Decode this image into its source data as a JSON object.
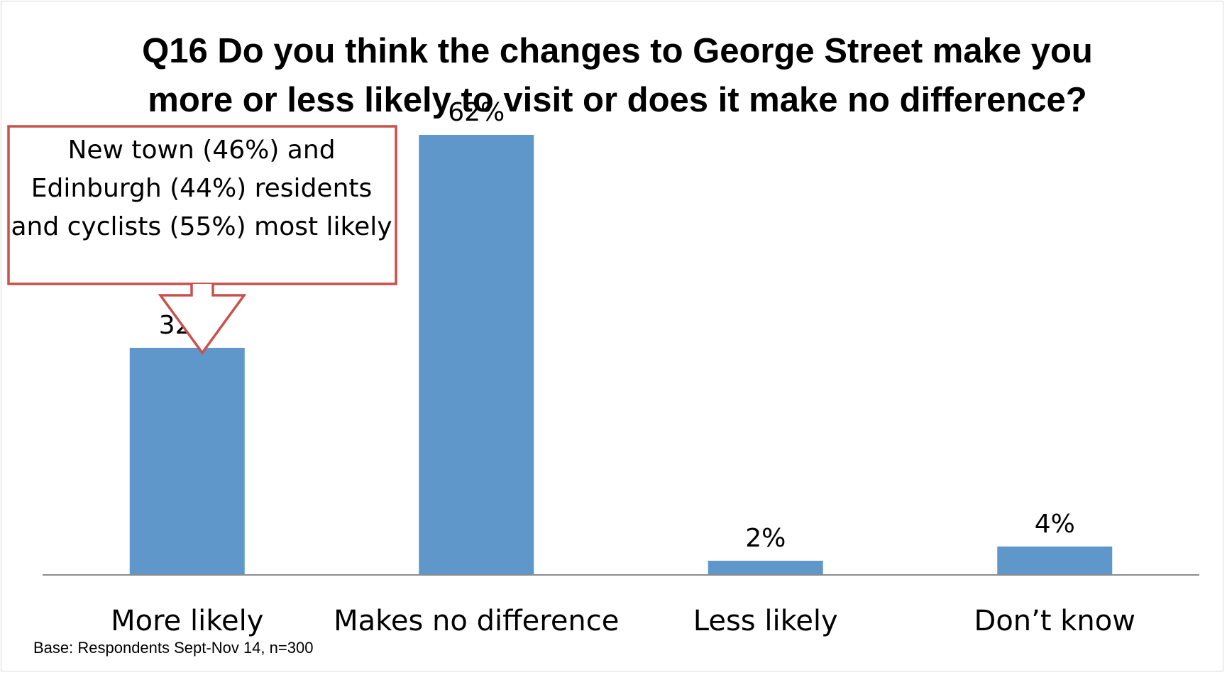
{
  "chart_data": {
    "type": "bar",
    "title": "Q16 Do you think the changes to George Street make you more or less likely to visit or does it make no difference?",
    "categories": [
      "More likely",
      "Makes no difference",
      "Less likely",
      "Don’t know"
    ],
    "values": [
      32,
      62,
      2,
      4
    ],
    "data_labels": [
      "32%",
      "62%",
      "2%",
      "4%"
    ],
    "ylim": [
      0,
      70
    ],
    "grid": false,
    "legend": "none",
    "bar_color": "#6097cb"
  },
  "callout": {
    "text": "New town (46%) and Edinburgh (44%) residents and cyclists (55%) most likely",
    "border_color": "#c9504b"
  },
  "footnote": "Base: Respondents Sept-Nov 14, n=300"
}
